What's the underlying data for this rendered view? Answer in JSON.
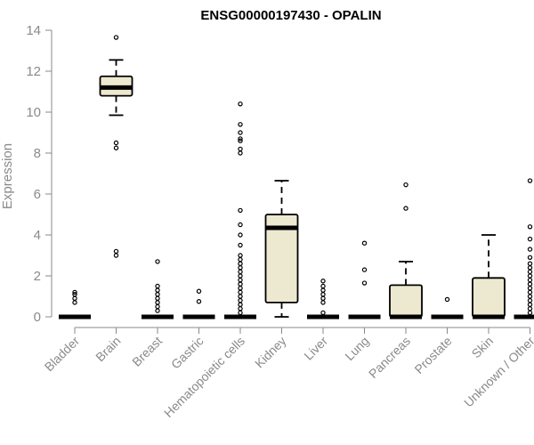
{
  "chart_data": {
    "type": "box",
    "title": "ENSG00000197430 - OPALIN",
    "ylabel": "Expression",
    "xlabel": "",
    "ylim": [
      0,
      14
    ],
    "yticks": [
      0,
      2,
      4,
      6,
      8,
      10,
      12,
      14
    ],
    "grid": false,
    "legend": "none",
    "colors": {
      "box_fill": "#ede8d0",
      "box_edge": "#000000",
      "axis": "#8a8a8a"
    },
    "categories": [
      "Bladder",
      "Brain",
      "Breast",
      "Gastric",
      "Hematopoietic cells",
      "Kidney",
      "Liver",
      "Lung",
      "Pancreas",
      "Prostate",
      "Skin",
      "Unknown / Other"
    ],
    "boxes": [
      {
        "category": "Bladder",
        "whisker_low": 0,
        "q1": 0,
        "median": 0,
        "q3": 0,
        "whisker_high": 0,
        "outliers": [
          0.7,
          0.9,
          1.1,
          1.2
        ]
      },
      {
        "category": "Brain",
        "whisker_low": 9.85,
        "q1": 10.8,
        "median": 11.2,
        "q3": 11.75,
        "whisker_high": 12.55,
        "outliers": [
          3.0,
          3.2,
          8.25,
          8.5,
          13.65
        ]
      },
      {
        "category": "Breast",
        "whisker_low": 0,
        "q1": 0,
        "median": 0,
        "q3": 0,
        "whisker_high": 0,
        "outliers": [
          0.3,
          0.5,
          0.7,
          0.9,
          1.1,
          1.3,
          1.5,
          2.7
        ]
      },
      {
        "category": "Gastric",
        "whisker_low": 0,
        "q1": 0,
        "median": 0,
        "q3": 0,
        "whisker_high": 0,
        "outliers": [
          0.75,
          1.25
        ]
      },
      {
        "category": "Hematopoietic cells",
        "whisker_low": 0,
        "q1": 0,
        "median": 0,
        "q3": 0,
        "whisker_high": 0,
        "outliers": [
          0.2,
          0.4,
          0.6,
          0.8,
          1.0,
          1.2,
          1.4,
          1.6,
          1.8,
          2.0,
          2.2,
          2.4,
          2.6,
          2.8,
          3.0,
          3.5,
          4.0,
          4.5,
          5.2,
          8.0,
          8.2,
          8.6,
          8.7,
          9.0,
          9.4,
          10.4
        ]
      },
      {
        "category": "Kidney",
        "whisker_low": 0,
        "q1": 0.7,
        "median": 4.35,
        "q3": 5.0,
        "whisker_high": 6.65,
        "outliers": []
      },
      {
        "category": "Liver",
        "whisker_low": 0,
        "q1": 0,
        "median": 0,
        "q3": 0,
        "whisker_high": 0,
        "outliers": [
          0.2,
          0.7,
          0.9,
          1.1,
          1.3,
          1.5,
          1.75
        ]
      },
      {
        "category": "Lung",
        "whisker_low": 0,
        "q1": 0,
        "median": 0,
        "q3": 0,
        "whisker_high": 0,
        "outliers": [
          1.65,
          2.3,
          3.6
        ]
      },
      {
        "category": "Pancreas",
        "whisker_low": 0,
        "q1": 0,
        "median": 0,
        "q3": 1.55,
        "whisker_high": 2.7,
        "outliers": [
          5.3,
          6.45
        ]
      },
      {
        "category": "Prostate",
        "whisker_low": 0,
        "q1": 0,
        "median": 0,
        "q3": 0,
        "whisker_high": 0,
        "outliers": [
          0.85
        ]
      },
      {
        "category": "Skin",
        "whisker_low": 0,
        "q1": 0,
        "median": 0,
        "q3": 1.9,
        "whisker_high": 4.0,
        "outliers": []
      },
      {
        "category": "Unknown / Other",
        "whisker_low": 0,
        "q1": 0,
        "median": 0,
        "q3": 0,
        "whisker_high": 0,
        "outliers": [
          0.2,
          0.4,
          0.6,
          0.8,
          1.0,
          1.2,
          1.4,
          1.6,
          1.8,
          2.0,
          2.2,
          2.4,
          2.6,
          2.9,
          3.3,
          3.8,
          4.4,
          6.65
        ]
      }
    ]
  }
}
